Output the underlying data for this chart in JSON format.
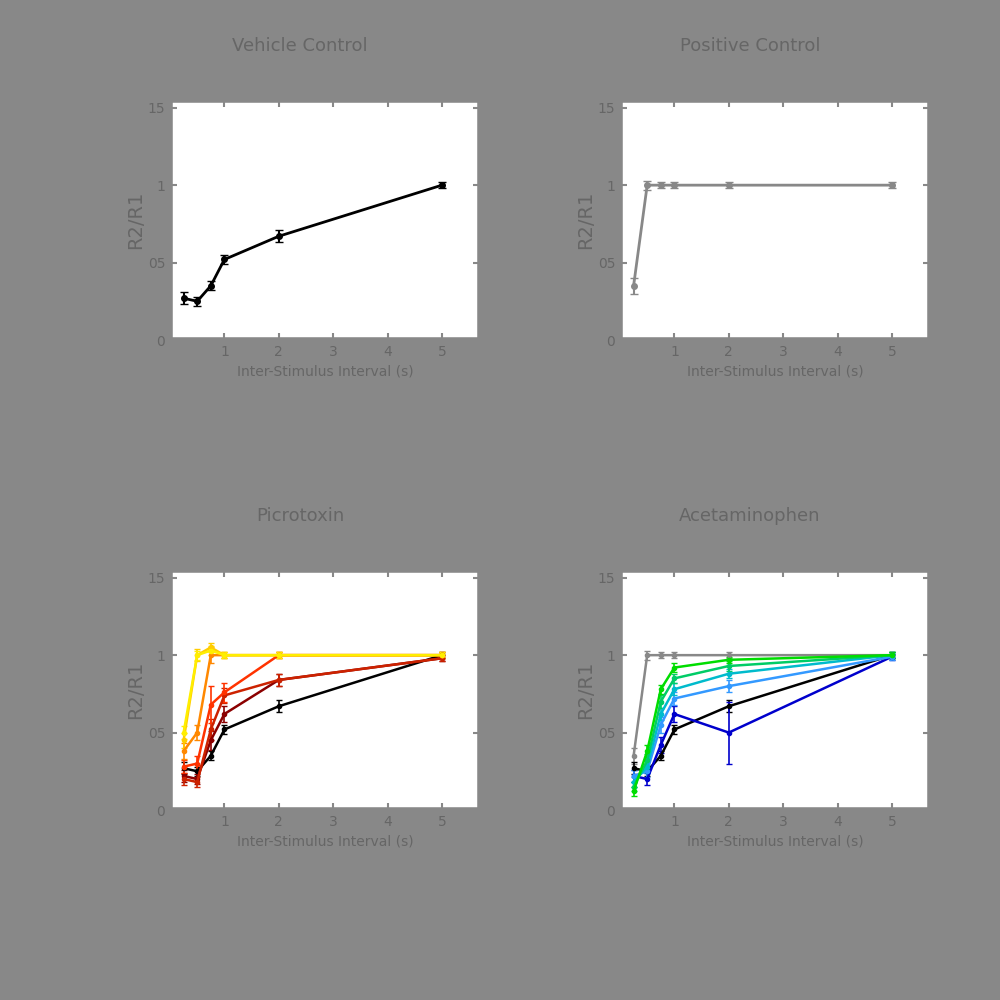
{
  "x_values": [
    0.25,
    0.5,
    0.75,
    1.0,
    2.0,
    5.0
  ],
  "titles": [
    "Vehicle Control",
    "Positive Control",
    "Picrotoxin",
    "Acetaminophen"
  ],
  "xlabel": "Inter-Stimulus Interval (s)",
  "ylabel": "R2/R1",
  "ylim": [
    0,
    1.55
  ],
  "xticks": [
    1,
    2,
    3,
    4,
    5
  ],
  "yticks": [
    0,
    0.5,
    1.0,
    1.5
  ],
  "ytick_labels": [
    "0",
    "05",
    "1",
    "15"
  ],
  "fig_bg": "#888888",
  "panel_bg": "#888888",
  "plot_bg": "#ffffff",
  "title_color": "#666666",
  "label_color": "#666666",
  "tick_color": "#888888",
  "vehicle_y": [
    0.27,
    0.25,
    0.35,
    0.52,
    0.67,
    1.0
  ],
  "vehicle_yerr": [
    0.04,
    0.03,
    0.03,
    0.03,
    0.04,
    0.02
  ],
  "positive_y": [
    0.35,
    1.0,
    1.0,
    1.0,
    1.0,
    1.0
  ],
  "positive_yerr": [
    0.05,
    0.03,
    0.02,
    0.02,
    0.02,
    0.02
  ],
  "picrotoxin_series": [
    {
      "color": "#000000",
      "y": [
        0.27,
        0.25,
        0.35,
        0.52,
        0.67,
        1.0
      ],
      "yerr": [
        0.04,
        0.03,
        0.03,
        0.03,
        0.04,
        0.02
      ]
    },
    {
      "color": "#8B0000",
      "y": [
        0.22,
        0.2,
        0.45,
        0.62,
        0.84,
        0.98
      ],
      "yerr": [
        0.04,
        0.03,
        0.06,
        0.05,
        0.04,
        0.02
      ]
    },
    {
      "color": "#CC2200",
      "y": [
        0.2,
        0.18,
        0.52,
        0.74,
        0.84,
        0.98
      ],
      "yerr": [
        0.04,
        0.03,
        0.07,
        0.05,
        0.04,
        0.02
      ]
    },
    {
      "color": "#FF3300",
      "y": [
        0.28,
        0.3,
        0.68,
        0.76,
        1.0,
        1.0
      ],
      "yerr": [
        0.04,
        0.05,
        0.12,
        0.06,
        0.02,
        0.02
      ]
    },
    {
      "color": "#FF8800",
      "y": [
        0.38,
        0.5,
        1.0,
        1.0,
        1.0,
        1.0
      ],
      "yerr": [
        0.05,
        0.05,
        0.05,
        0.02,
        0.02,
        0.02
      ]
    },
    {
      "color": "#FFcc00",
      "y": [
        0.45,
        1.0,
        1.05,
        1.0,
        1.0,
        1.0
      ],
      "yerr": [
        0.05,
        0.04,
        0.03,
        0.02,
        0.02,
        0.02
      ]
    },
    {
      "color": "#FFEE00",
      "y": [
        0.5,
        1.0,
        1.03,
        1.0,
        1.0,
        1.0
      ],
      "yerr": [
        0.04,
        0.03,
        0.03,
        0.02,
        0.02,
        0.02
      ]
    }
  ],
  "acetaminophen_series": [
    {
      "color": "#888888",
      "y": [
        0.35,
        1.0,
        1.0,
        1.0,
        1.0,
        1.0
      ],
      "yerr": [
        0.05,
        0.03,
        0.02,
        0.02,
        0.02,
        0.02
      ]
    },
    {
      "color": "#000000",
      "y": [
        0.27,
        0.25,
        0.35,
        0.52,
        0.67,
        1.0
      ],
      "yerr": [
        0.04,
        0.03,
        0.03,
        0.03,
        0.04,
        0.02
      ]
    },
    {
      "color": "#0000CC",
      "y": [
        0.22,
        0.2,
        0.42,
        0.62,
        0.5,
        0.99
      ],
      "yerr": [
        0.04,
        0.04,
        0.05,
        0.05,
        0.2,
        0.02
      ]
    },
    {
      "color": "#3399FF",
      "y": [
        0.22,
        0.25,
        0.55,
        0.72,
        0.8,
        0.99
      ],
      "yerr": [
        0.04,
        0.04,
        0.05,
        0.04,
        0.04,
        0.02
      ]
    },
    {
      "color": "#00BBCC",
      "y": [
        0.18,
        0.28,
        0.62,
        0.78,
        0.88,
        1.0
      ],
      "yerr": [
        0.03,
        0.04,
        0.04,
        0.04,
        0.03,
        0.02
      ]
    },
    {
      "color": "#00CC66",
      "y": [
        0.15,
        0.32,
        0.7,
        0.85,
        0.93,
        1.0
      ],
      "yerr": [
        0.03,
        0.04,
        0.04,
        0.03,
        0.03,
        0.02
      ]
    },
    {
      "color": "#00DD00",
      "y": [
        0.12,
        0.38,
        0.78,
        0.92,
        0.97,
        1.0
      ],
      "yerr": [
        0.03,
        0.04,
        0.03,
        0.03,
        0.02,
        0.02
      ]
    }
  ]
}
